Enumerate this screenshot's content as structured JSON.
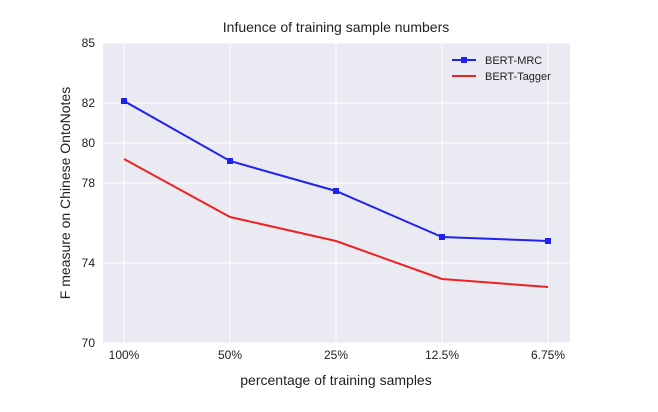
{
  "chart_data": {
    "type": "line",
    "title": "Infuence of training sample numbers",
    "xlabel": "percentage of training samples",
    "ylabel": "F measure on Chinese OntoNotes",
    "categories": [
      "100%",
      "50%",
      "25%",
      "12.5%",
      "6.75%"
    ],
    "ylim": [
      70,
      85
    ],
    "yticks": [
      70,
      74,
      78,
      80,
      82,
      85
    ],
    "grid": true,
    "legend_position": "top-right",
    "series": [
      {
        "name": "BERT-MRC",
        "color": "#2222ee",
        "marker": "square",
        "values": [
          82.1,
          79.1,
          77.6,
          75.3,
          75.1
        ]
      },
      {
        "name": "BERT-Tagger",
        "color": "#ee2222",
        "marker": "none",
        "values": [
          79.2,
          76.3,
          75.1,
          73.2,
          72.8
        ]
      }
    ]
  }
}
